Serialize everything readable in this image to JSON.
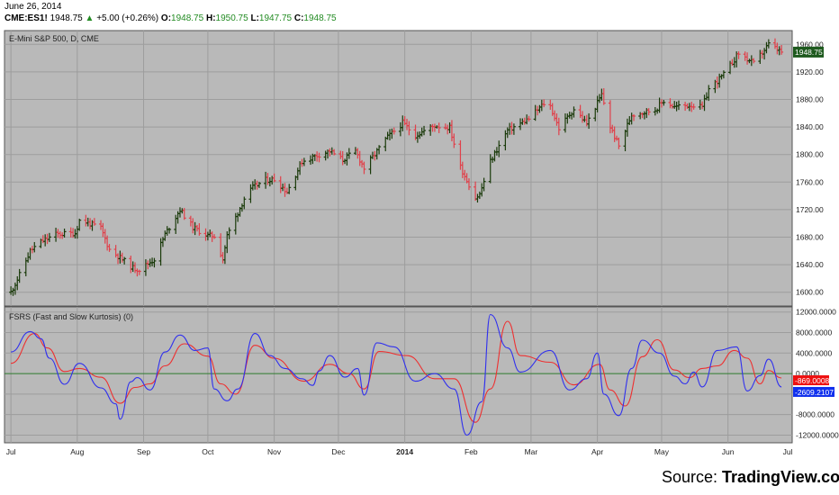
{
  "header": {
    "date": "June 26, 2014",
    "symbol": "CME:ES1!",
    "last": "1948.75",
    "change": "+5.00 (+0.26%)",
    "o_label": "O:",
    "o_value": "1948.75",
    "h_label": "H:",
    "h_value": "1950.75",
    "l_label": "L:",
    "l_value": "1947.75",
    "c_label": "C:",
    "c_value": "1948.75"
  },
  "source": {
    "prefix": "Source: ",
    "brand": "TradingView.com"
  },
  "colors": {
    "panel_bg": "#b9b9b9",
    "grid": "#9d9d9d",
    "up_bar": "#1a3a0a",
    "down_bar": "#e0404a",
    "fast_line": "#3030ee",
    "slow_line": "#ee3030",
    "zero_line": "#2f7d2f",
    "price_tag_bg": "#1e5a1e",
    "fast_tag_bg": "#1030ee",
    "slow_tag_bg": "#ee1010"
  },
  "chart_data": [
    {
      "type": "candlestick",
      "title": "E-Mini S&P 500, D, CME",
      "ylim": [
        1580,
        1980
      ],
      "y_ticks": [
        "1960.00",
        "1920.00",
        "1880.00",
        "1840.00",
        "1800.00",
        "1760.00",
        "1720.00",
        "1680.00",
        "1640.00",
        "1600.00"
      ],
      "last_value_tag": "1948.75",
      "x_ticks": [
        "Jul",
        "Aug",
        "Sep",
        "Oct",
        "Nov",
        "Dec",
        "2014",
        "Feb",
        "Mar",
        "Apr",
        "May",
        "Jun",
        "Jul"
      ],
      "close_anchors": [
        [
          "2013-07-01",
          1600
        ],
        [
          "2013-07-05",
          1625
        ],
        [
          "2013-07-10",
          1660
        ],
        [
          "2013-07-15",
          1673
        ],
        [
          "2013-07-22",
          1684
        ],
        [
          "2013-07-31",
          1686
        ],
        [
          "2013-08-02",
          1704
        ],
        [
          "2013-08-05",
          1702
        ],
        [
          "2013-08-12",
          1693
        ],
        [
          "2013-08-16",
          1662
        ],
        [
          "2013-08-21",
          1650
        ],
        [
          "2013-08-27",
          1635
        ],
        [
          "2013-08-30",
          1633
        ],
        [
          "2013-09-06",
          1648
        ],
        [
          "2013-09-11",
          1684
        ],
        [
          "2013-09-18",
          1720
        ],
        [
          "2013-09-24",
          1694
        ],
        [
          "2013-10-01",
          1682
        ],
        [
          "2013-10-04",
          1682
        ],
        [
          "2013-10-08",
          1648
        ],
        [
          "2013-10-10",
          1682
        ],
        [
          "2013-10-18",
          1736
        ],
        [
          "2013-10-22",
          1752
        ],
        [
          "2013-10-28",
          1763
        ],
        [
          "2013-11-01",
          1764
        ],
        [
          "2013-11-07",
          1746
        ],
        [
          "2013-11-14",
          1790
        ],
        [
          "2013-11-22",
          1800
        ],
        [
          "2013-11-27",
          1805
        ],
        [
          "2013-12-03",
          1792
        ],
        [
          "2013-12-09",
          1805
        ],
        [
          "2013-12-13",
          1780
        ],
        [
          "2013-12-18",
          1800
        ],
        [
          "2013-12-23",
          1822
        ],
        [
          "2013-12-31",
          1846
        ],
        [
          "2014-01-06",
          1828
        ],
        [
          "2014-01-15",
          1842
        ],
        [
          "2014-01-22",
          1839
        ],
        [
          "2014-01-27",
          1782
        ],
        [
          "2014-02-03",
          1737
        ],
        [
          "2014-02-05",
          1742
        ],
        [
          "2014-02-10",
          1790
        ],
        [
          "2014-02-18",
          1835
        ],
        [
          "2014-02-28",
          1852
        ],
        [
          "2014-03-07",
          1874
        ],
        [
          "2014-03-10",
          1870
        ],
        [
          "2014-03-14",
          1838
        ],
        [
          "2014-03-21",
          1866
        ],
        [
          "2014-03-27",
          1845
        ],
        [
          "2014-04-03",
          1887
        ],
        [
          "2014-04-07",
          1840
        ],
        [
          "2014-04-11",
          1812
        ],
        [
          "2014-04-17",
          1858
        ],
        [
          "2014-04-28",
          1865
        ],
        [
          "2014-05-02",
          1878
        ],
        [
          "2014-05-07",
          1869
        ],
        [
          "2014-05-15",
          1872
        ],
        [
          "2014-05-20",
          1868
        ],
        [
          "2014-05-23",
          1895
        ],
        [
          "2014-05-30",
          1916
        ],
        [
          "2014-06-06",
          1947
        ],
        [
          "2014-06-13",
          1932
        ],
        [
          "2014-06-20",
          1960
        ],
        [
          "2014-06-26",
          1948.75
        ]
      ]
    },
    {
      "type": "line",
      "title": "FSRS (Fast and Slow Kurtosis) (0)",
      "ylim": [
        -13500,
        13000
      ],
      "y_ticks": [
        "12000.0000",
        "8000.0000",
        "4000.0000",
        "0.0000",
        "-4000.0000",
        "-8000.0000",
        "-12000.0000"
      ],
      "zero_level": 0,
      "tags": {
        "slow": "-869.0008",
        "fast": "-2609.2107"
      },
      "series": [
        {
          "key": "fast",
          "points": [
            [
              "2013-07-01",
              4200
            ],
            [
              "2013-07-10",
              8200
            ],
            [
              "2013-07-15",
              6800
            ],
            [
              "2013-07-19",
              3000
            ],
            [
              "2013-07-26",
              -2100
            ],
            [
              "2013-08-02",
              2000
            ],
            [
              "2013-08-12",
              -2800
            ],
            [
              "2013-08-19",
              -5900
            ],
            [
              "2013-08-21",
              -8900
            ],
            [
              "2013-08-26",
              -1600
            ],
            [
              "2013-08-29",
              -800
            ],
            [
              "2013-09-04",
              -3200
            ],
            [
              "2013-09-11",
              4200
            ],
            [
              "2013-09-18",
              7500
            ],
            [
              "2013-09-25",
              4500
            ],
            [
              "2013-10-01",
              5000
            ],
            [
              "2013-10-04",
              -3000
            ],
            [
              "2013-10-10",
              -5300
            ],
            [
              "2013-10-15",
              -3000
            ],
            [
              "2013-10-23",
              7800
            ],
            [
              "2013-10-30",
              3500
            ],
            [
              "2013-11-06",
              1000
            ],
            [
              "2013-11-14",
              -1000
            ],
            [
              "2013-11-19",
              -2300
            ],
            [
              "2013-11-22",
              500
            ],
            [
              "2013-11-27",
              3500
            ],
            [
              "2013-12-04",
              -700
            ],
            [
              "2013-12-10",
              1000
            ],
            [
              "2013-12-13",
              -4200
            ],
            [
              "2013-12-19",
              6000
            ],
            [
              "2013-12-27",
              5200
            ],
            [
              "2014-01-06",
              -1500
            ],
            [
              "2014-01-15",
              0
            ],
            [
              "2014-01-24",
              -3000
            ],
            [
              "2014-01-30",
              -12000
            ],
            [
              "2014-02-06",
              -5500
            ],
            [
              "2014-02-10",
              11500
            ],
            [
              "2014-02-18",
              5000
            ],
            [
              "2014-02-24",
              300
            ],
            [
              "2014-03-10",
              4500
            ],
            [
              "2014-03-19",
              -3200
            ],
            [
              "2014-03-27",
              -1000
            ],
            [
              "2014-04-01",
              4000
            ],
            [
              "2014-04-04",
              -4000
            ],
            [
              "2014-04-11",
              -8200
            ],
            [
              "2014-04-17",
              1000
            ],
            [
              "2014-04-22",
              6500
            ],
            [
              "2014-04-30",
              4000
            ],
            [
              "2014-05-07",
              -500
            ],
            [
              "2014-05-12",
              -2000
            ],
            [
              "2014-05-16",
              300
            ],
            [
              "2014-05-20",
              -2600
            ],
            [
              "2014-05-27",
              4500
            ],
            [
              "2014-06-05",
              5200
            ],
            [
              "2014-06-10",
              -3400
            ],
            [
              "2014-06-16",
              -400
            ],
            [
              "2014-06-20",
              2800
            ],
            [
              "2014-06-26",
              -2609.2107
            ]
          ]
        },
        {
          "key": "slow",
          "points": [
            [
              "2013-07-01",
              2000
            ],
            [
              "2013-07-12",
              7800
            ],
            [
              "2013-07-18",
              5000
            ],
            [
              "2013-07-26",
              400
            ],
            [
              "2013-08-02",
              1000
            ],
            [
              "2013-08-12",
              -700
            ],
            [
              "2013-08-21",
              -5800
            ],
            [
              "2013-08-28",
              -2700
            ],
            [
              "2013-09-04",
              -2000
            ],
            [
              "2013-09-11",
              1500
            ],
            [
              "2013-09-20",
              5800
            ],
            [
              "2013-10-01",
              3400
            ],
            [
              "2013-10-07",
              -2000
            ],
            [
              "2013-10-14",
              -4000
            ],
            [
              "2013-10-23",
              5500
            ],
            [
              "2013-11-01",
              3000
            ],
            [
              "2013-11-15",
              -1500
            ],
            [
              "2013-11-27",
              1800
            ],
            [
              "2013-12-06",
              0
            ],
            [
              "2013-12-13",
              -3000
            ],
            [
              "2013-12-20",
              4300
            ],
            [
              "2014-01-02",
              3500
            ],
            [
              "2014-01-15",
              -1000
            ],
            [
              "2014-01-24",
              -1000
            ],
            [
              "2014-02-03",
              -9500
            ],
            [
              "2014-02-10",
              -3000
            ],
            [
              "2014-02-18",
              10200
            ],
            [
              "2014-02-24",
              3500
            ],
            [
              "2014-03-10",
              2200
            ],
            [
              "2014-03-21",
              -2200
            ],
            [
              "2014-04-02",
              1800
            ],
            [
              "2014-04-07",
              -3200
            ],
            [
              "2014-04-14",
              -6300
            ],
            [
              "2014-04-22",
              3300
            ],
            [
              "2014-04-29",
              6600
            ],
            [
              "2014-05-07",
              700
            ],
            [
              "2014-05-14",
              -800
            ],
            [
              "2014-05-20",
              1000
            ],
            [
              "2014-05-27",
              1500
            ],
            [
              "2014-06-04",
              4500
            ],
            [
              "2014-06-10",
              3000
            ],
            [
              "2014-06-16",
              -2000
            ],
            [
              "2014-06-20",
              600
            ],
            [
              "2014-06-26",
              -869.0008
            ]
          ]
        }
      ]
    }
  ]
}
